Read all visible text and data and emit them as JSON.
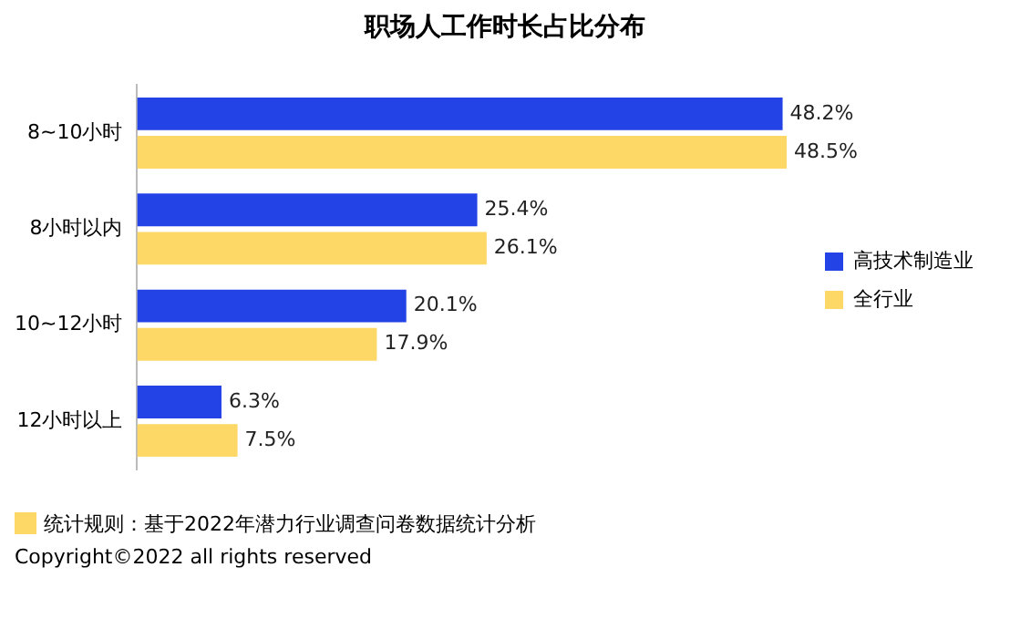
{
  "chart_data": {
    "type": "bar",
    "orientation": "horizontal",
    "title": "职场人工作时长占比分布",
    "categories": [
      "8~10小时",
      "8小时以内",
      "10~12小时",
      "12小时以上"
    ],
    "series": [
      {
        "name": "高技术制造业",
        "color": "#2443e6",
        "values": [
          48.2,
          25.4,
          20.1,
          6.3
        ],
        "value_labels": [
          "48.2%",
          "25.4%",
          "20.1%",
          "6.3%"
        ]
      },
      {
        "name": "全行业",
        "color": "#fdd867",
        "values": [
          48.5,
          26.1,
          17.9,
          7.5
        ],
        "value_labels": [
          "48.5%",
          "26.1%",
          "17.9%",
          "7.5%"
        ]
      }
    ],
    "legend": "right",
    "grid": false,
    "tick_labels": "y",
    "annotations": [
      "统计规则：基于2022年潜力行业调查问卷数据统计分析",
      "Copyright©2022 all rights reserved"
    ]
  }
}
